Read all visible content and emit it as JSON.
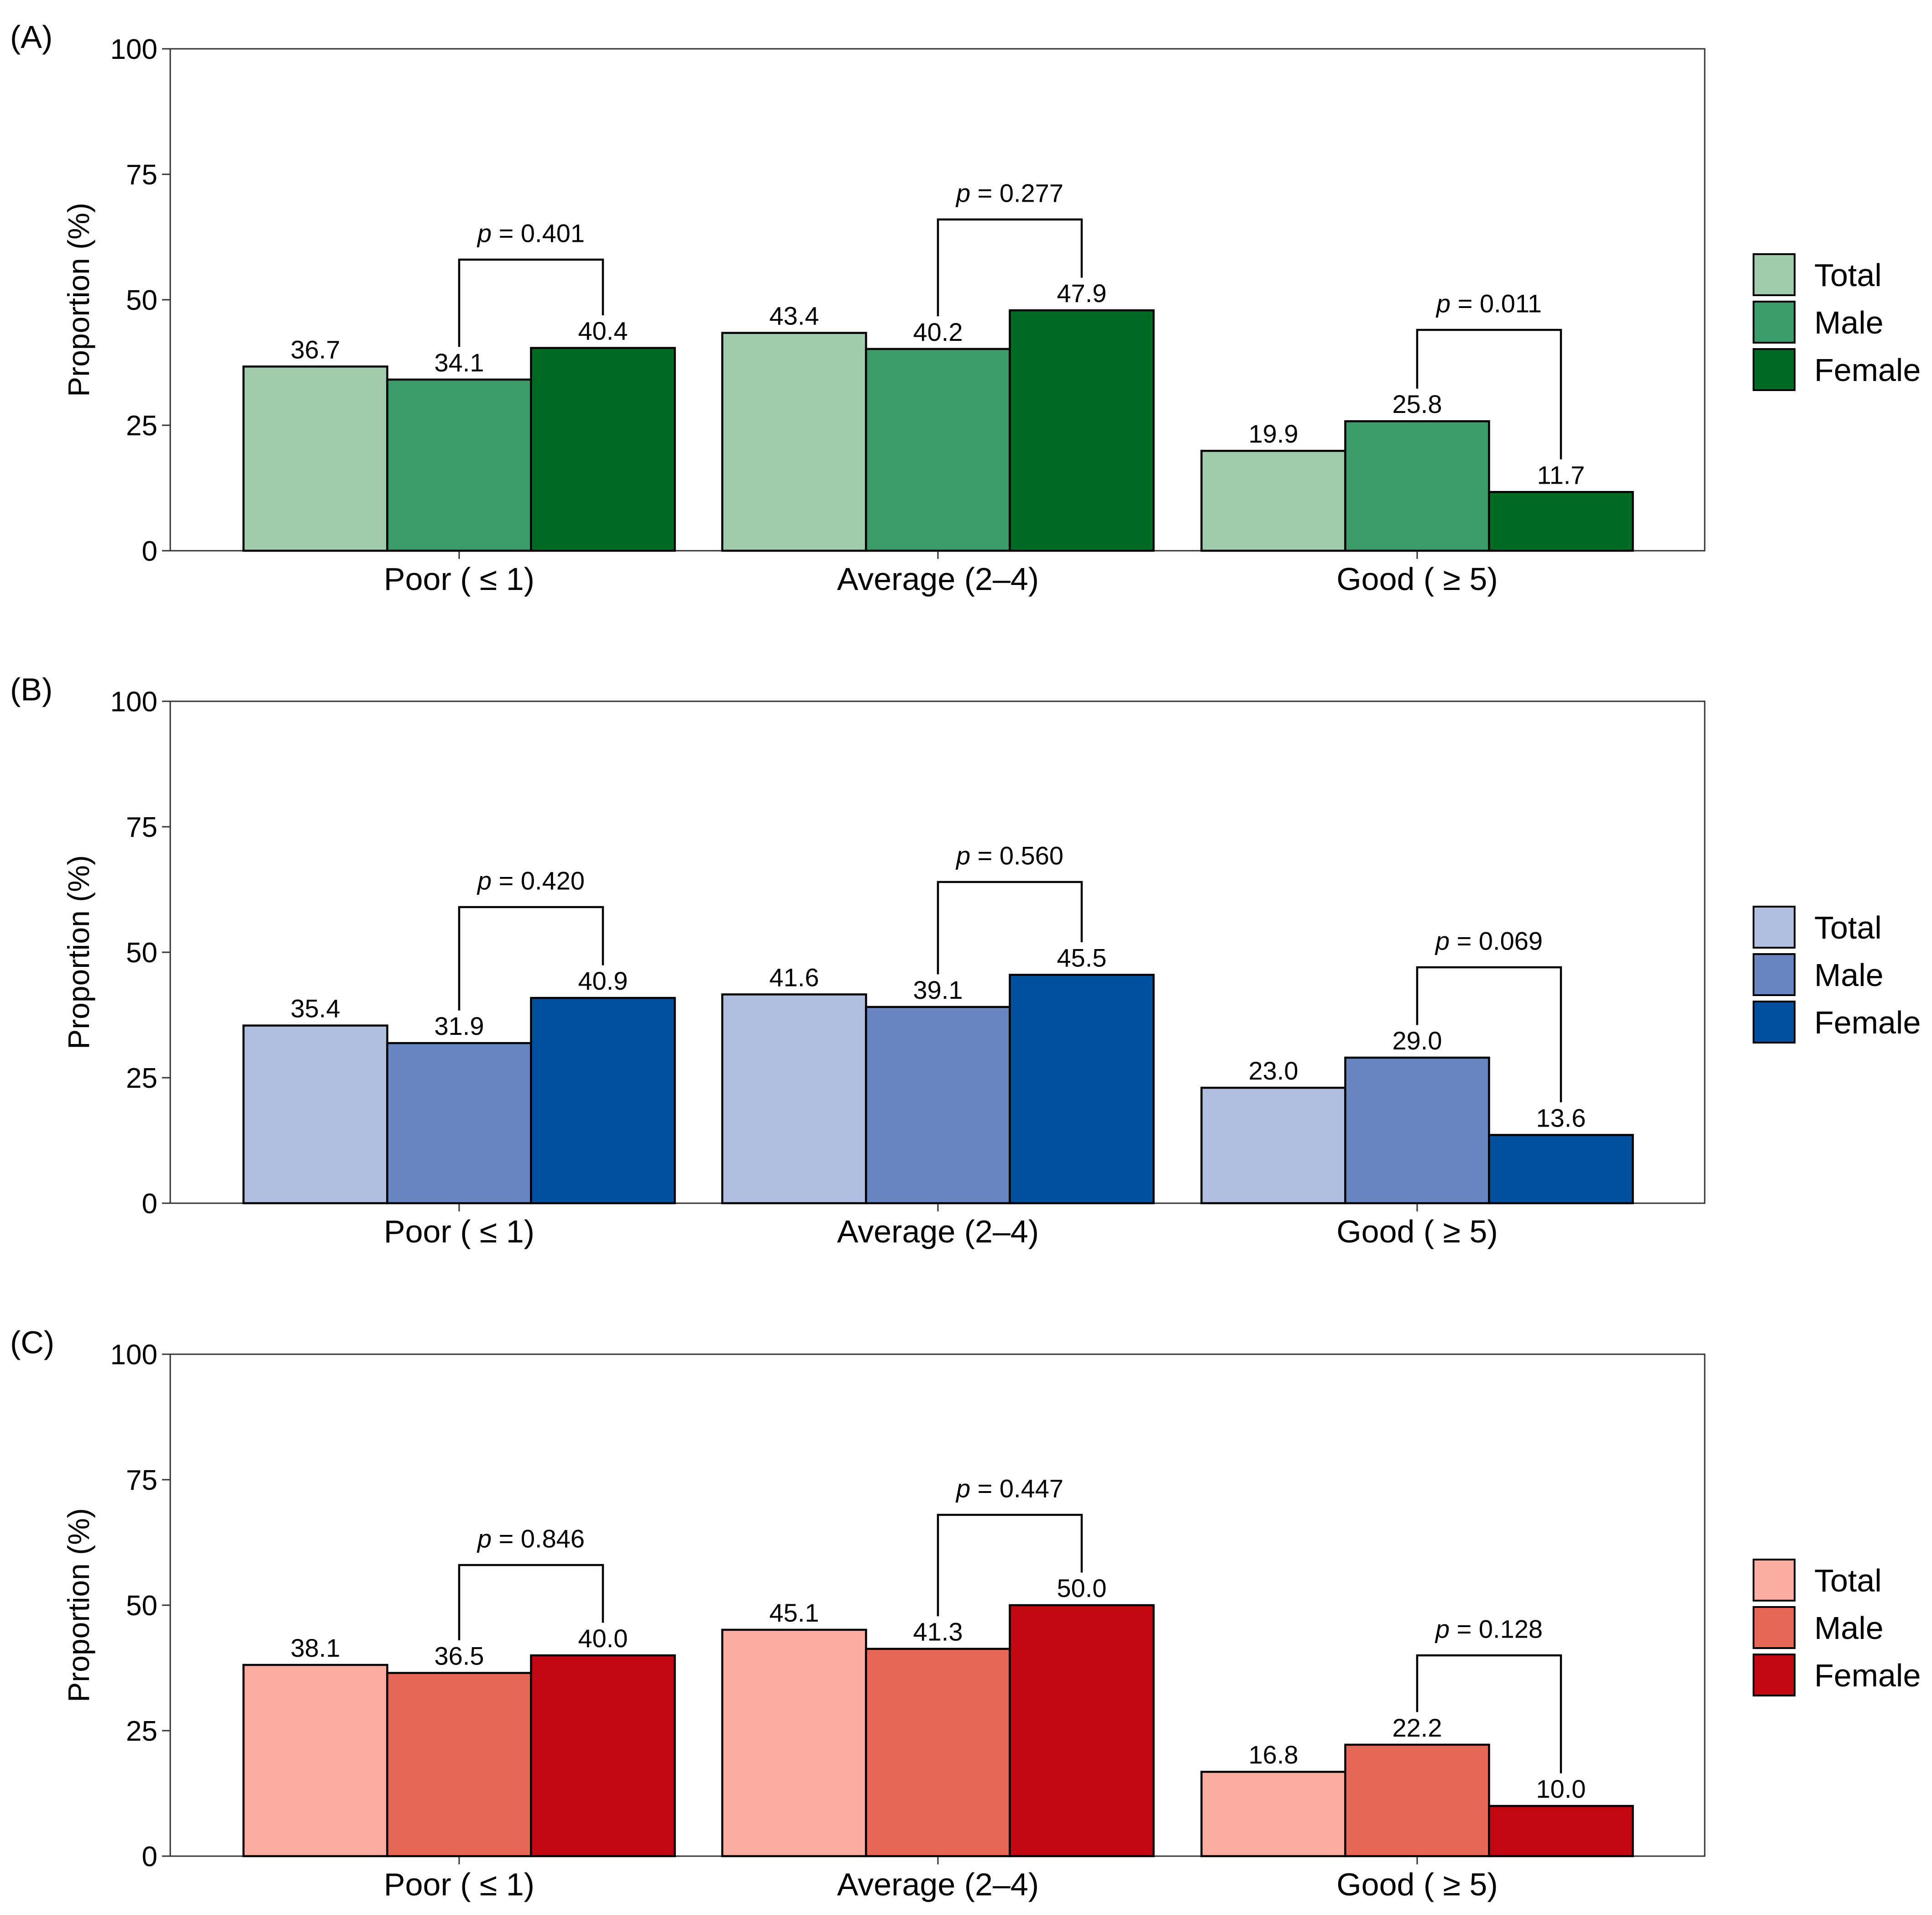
{
  "legend_labels": [
    "Total",
    "Male",
    "Female"
  ],
  "chart_data": [
    {
      "type": "bar",
      "panel": "(A)",
      "ylabel": "Proportion (%)",
      "ylim": [
        0,
        100
      ],
      "yticks": [
        0,
        25,
        50,
        75,
        100
      ],
      "categories": [
        "Poor ( ≤ 1)",
        "Average (2–4)",
        "Good ( ≥ 5)"
      ],
      "series": [
        {
          "name": "Total",
          "color": "#a1cbad",
          "values": [
            36.7,
            43.4,
            19.9
          ]
        },
        {
          "name": "Male",
          "color": "#3b9b69",
          "values": [
            34.1,
            40.2,
            25.8
          ]
        },
        {
          "name": "Female",
          "color": "#006c23",
          "values": [
            40.4,
            47.9,
            11.7
          ]
        }
      ],
      "value_labels": [
        [
          "36.7",
          "43.4",
          "19.9"
        ],
        [
          "34.1",
          "40.2",
          "25.8"
        ],
        [
          "40.4",
          "47.9",
          "11.7"
        ]
      ],
      "p_values": [
        {
          "category": 0,
          "text": "0.401",
          "from_series": 1,
          "to_series": 2,
          "bracket_y": 58
        },
        {
          "category": 1,
          "text": "0.277",
          "from_series": 1,
          "to_series": 2,
          "bracket_y": 66
        },
        {
          "category": 2,
          "text": "0.011",
          "from_series": 1,
          "to_series": 2,
          "bracket_y": 44
        }
      ]
    },
    {
      "type": "bar",
      "panel": "(B)",
      "ylabel": "Proportion (%)",
      "ylim": [
        0,
        100
      ],
      "yticks": [
        0,
        25,
        50,
        75,
        100
      ],
      "categories": [
        "Poor ( ≤ 1)",
        "Average (2–4)",
        "Good ( ≥ 5)"
      ],
      "series": [
        {
          "name": "Total",
          "color": "#b0bfe0",
          "values": [
            35.4,
            41.6,
            23.0
          ]
        },
        {
          "name": "Male",
          "color": "#6886c1",
          "values": [
            31.9,
            39.1,
            29.0
          ]
        },
        {
          "name": "Female",
          "color": "#0050a0",
          "values": [
            40.9,
            45.5,
            13.6
          ]
        }
      ],
      "value_labels": [
        [
          "35.4",
          "41.6",
          "23.0"
        ],
        [
          "31.9",
          "39.1",
          "29.0"
        ],
        [
          "40.9",
          "45.5",
          "13.6"
        ]
      ],
      "p_values": [
        {
          "category": 0,
          "text": "0.420",
          "from_series": 1,
          "to_series": 2,
          "bracket_y": 59
        },
        {
          "category": 1,
          "text": "0.560",
          "from_series": 1,
          "to_series": 2,
          "bracket_y": 64
        },
        {
          "category": 2,
          "text": "0.069",
          "from_series": 1,
          "to_series": 2,
          "bracket_y": 47
        }
      ]
    },
    {
      "type": "bar",
      "panel": "(C)",
      "ylabel": "Proportion (%)",
      "ylim": [
        0,
        100
      ],
      "yticks": [
        0,
        25,
        50,
        75,
        100
      ],
      "categories": [
        "Poor ( ≤ 1)",
        "Average (2–4)",
        "Good ( ≥ 5)"
      ],
      "series": [
        {
          "name": "Total",
          "color": "#fbada0",
          "values": [
            38.1,
            45.1,
            16.8
          ]
        },
        {
          "name": "Male",
          "color": "#e86858",
          "values": [
            36.5,
            41.3,
            22.2
          ]
        },
        {
          "name": "Female",
          "color": "#c10810",
          "values": [
            40.0,
            50.0,
            10.0
          ]
        }
      ],
      "value_labels": [
        [
          "38.1",
          "45.1",
          "16.8"
        ],
        [
          "36.5",
          "41.3",
          "22.2"
        ],
        [
          "40.0",
          "50.0",
          "10.0"
        ]
      ],
      "p_values": [
        {
          "category": 0,
          "text": "0.846",
          "from_series": 1,
          "to_series": 2,
          "bracket_y": 58
        },
        {
          "category": 1,
          "text": "0.447",
          "from_series": 1,
          "to_series": 2,
          "bracket_y": 68
        },
        {
          "category": 2,
          "text": "0.128",
          "from_series": 1,
          "to_series": 2,
          "bracket_y": 40
        }
      ]
    }
  ]
}
